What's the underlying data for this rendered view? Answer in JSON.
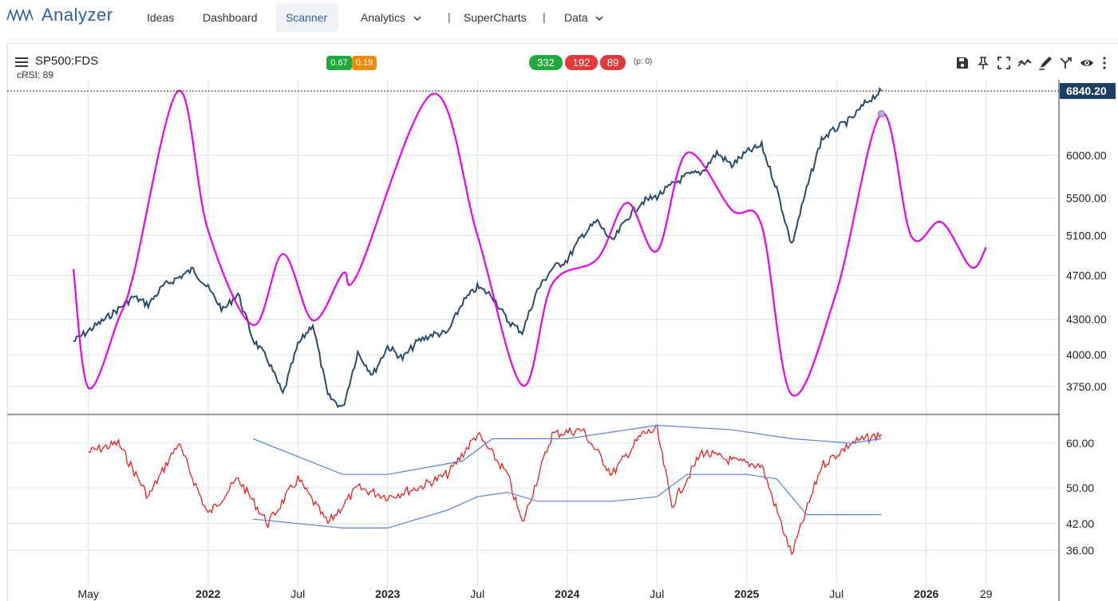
{
  "app": {
    "name": "Analyzer"
  },
  "nav": {
    "items": [
      {
        "label": "Ideas"
      },
      {
        "label": "Dashboard"
      },
      {
        "label": "Scanner"
      },
      {
        "label": "Analytics"
      },
      {
        "label": "SuperCharts"
      },
      {
        "label": "Data"
      }
    ],
    "separator": "|"
  },
  "chart": {
    "symbol": "SP500:FDS",
    "indicator_label": "cRSI: 89",
    "badges": {
      "a": "0.67",
      "b": "0.19"
    },
    "counts": {
      "green": "332",
      "red1": "192",
      "red2": "89"
    },
    "p_label": "(p: 0)",
    "last_price": "6840.20"
  },
  "chart_data": {
    "type": "line",
    "title": "SP500:FDS",
    "x_tick_labels": [
      "May",
      "2022",
      "Jul",
      "2023",
      "Jul",
      "2024",
      "Jul",
      "2025",
      "Jul",
      "2026",
      "29"
    ],
    "price_axis": {
      "ticks": [
        "6000.00",
        "5500.00",
        "5100.00",
        "4700.00",
        "4300.00",
        "4000.00",
        "3750.00"
      ],
      "last_value": 6840.2,
      "scale": "log"
    },
    "series": [
      {
        "name": "SP500:FDS",
        "color": "#2a4a6b",
        "points": [
          [
            "2021-04",
            4110
          ],
          [
            "2021-05",
            4200
          ],
          [
            "2021-06",
            4290
          ],
          [
            "2021-07",
            4390
          ],
          [
            "2021-08",
            4500
          ],
          [
            "2021-09",
            4430
          ],
          [
            "2021-10",
            4600
          ],
          [
            "2021-11",
            4680
          ],
          [
            "2021-12",
            4760
          ],
          [
            "2022-01",
            4580
          ],
          [
            "2022-02",
            4380
          ],
          [
            "2022-03",
            4530
          ],
          [
            "2022-04",
            4130
          ],
          [
            "2022-05",
            3960
          ],
          [
            "2022-06",
            3690
          ],
          [
            "2022-07",
            4080
          ],
          [
            "2022-08",
            4260
          ],
          [
            "2022-09",
            3680
          ],
          [
            "2022-10",
            3590
          ],
          [
            "2022-11",
            4020
          ],
          [
            "2022-12",
            3840
          ],
          [
            "2023-01",
            4070
          ],
          [
            "2023-02",
            3970
          ],
          [
            "2023-03",
            4110
          ],
          [
            "2023-04",
            4170
          ],
          [
            "2023-05",
            4180
          ],
          [
            "2023-06",
            4450
          ],
          [
            "2023-07",
            4590
          ],
          [
            "2023-08",
            4510
          ],
          [
            "2023-09",
            4290
          ],
          [
            "2023-10",
            4190
          ],
          [
            "2023-11",
            4560
          ],
          [
            "2023-12",
            4770
          ],
          [
            "2024-01",
            4850
          ],
          [
            "2024-02",
            5100
          ],
          [
            "2024-03",
            5250
          ],
          [
            "2024-04",
            5030
          ],
          [
            "2024-05",
            5280
          ],
          [
            "2024-06",
            5460
          ],
          [
            "2024-07",
            5520
          ],
          [
            "2024-08",
            5650
          ],
          [
            "2024-09",
            5760
          ],
          [
            "2024-10",
            5800
          ],
          [
            "2024-11",
            6030
          ],
          [
            "2024-12",
            5880
          ],
          [
            "2025-01",
            6040
          ],
          [
            "2025-02",
            6120
          ],
          [
            "2025-03",
            5610
          ],
          [
            "2025-04",
            5000
          ],
          [
            "2025-05",
            5600
          ],
          [
            "2025-06",
            6200
          ],
          [
            "2025-07",
            6340
          ],
          [
            "2025-08",
            6460
          ],
          [
            "2025-09",
            6690
          ],
          [
            "2025-10",
            6840
          ]
        ]
      },
      {
        "name": "cycle",
        "color": "#ee00ee",
        "points": [
          [
            "2021-04",
            4760
          ],
          [
            "2021-05",
            3740
          ],
          [
            "2021-07",
            4300
          ],
          [
            "2021-08",
            4700
          ],
          [
            "2021-11",
            6840
          ],
          [
            "2022-01",
            5150
          ],
          [
            "2022-04",
            4250
          ],
          [
            "2022-06",
            4910
          ],
          [
            "2022-08",
            4290
          ],
          [
            "2022-10",
            4720
          ],
          [
            "2022-11",
            4720
          ],
          [
            "2023-04",
            6800
          ],
          [
            "2023-07",
            5100
          ],
          [
            "2023-10",
            3760
          ],
          [
            "2023-12",
            4620
          ],
          [
            "2024-03",
            4860
          ],
          [
            "2024-05",
            5450
          ],
          [
            "2024-07",
            4940
          ],
          [
            "2024-09",
            6030
          ],
          [
            "2024-12",
            5370
          ],
          [
            "2025-02",
            5200
          ],
          [
            "2025-04",
            3690
          ],
          [
            "2025-07",
            4550
          ],
          [
            "2025-10",
            6530
          ],
          [
            "2025-12",
            5090
          ],
          [
            "2026-02",
            5240
          ],
          [
            "2026-04",
            4780
          ],
          [
            "2026-05",
            4980
          ]
        ]
      }
    ],
    "lower_pane": {
      "name": "cRSI",
      "ticks": [
        "60.00",
        "50.00",
        "42.00",
        "36.00"
      ],
      "series": [
        {
          "name": "cRSI",
          "color": "#e11",
          "points": [
            [
              "2021-05",
              58
            ],
            [
              "2021-07",
              60
            ],
            [
              "2021-09",
              48
            ],
            [
              "2021-11",
              60
            ],
            [
              "2022-01",
              44
            ],
            [
              "2022-03",
              52
            ],
            [
              "2022-05",
              42
            ],
            [
              "2022-07",
              52
            ],
            [
              "2022-09",
              42
            ],
            [
              "2022-11",
              50
            ],
            [
              "2023-01",
              48
            ],
            [
              "2023-03",
              50
            ],
            [
              "2023-05",
              53
            ],
            [
              "2023-07",
              62
            ],
            [
              "2023-09",
              53
            ],
            [
              "2023-10",
              42
            ],
            [
              "2023-12",
              62
            ],
            [
              "2024-02",
              63
            ],
            [
              "2024-04",
              53
            ],
            [
              "2024-06",
              62
            ],
            [
              "2024-07",
              63
            ],
            [
              "2024-08",
              46
            ],
            [
              "2024-10",
              58
            ],
            [
              "2024-12",
              56
            ],
            [
              "2025-02",
              55
            ],
            [
              "2025-04",
              35
            ],
            [
              "2025-06",
              55
            ],
            [
              "2025-08",
              60
            ],
            [
              "2025-10",
              62
            ]
          ]
        },
        {
          "name": "upper band",
          "color": "#5b7fd6",
          "points": [
            [
              "2022-04",
              61
            ],
            [
              "2022-07",
              57
            ],
            [
              "2022-10",
              53
            ],
            [
              "2023-01",
              53
            ],
            [
              "2023-06",
              56
            ],
            [
              "2023-08",
              61
            ],
            [
              "2024-01",
              61
            ],
            [
              "2024-07",
              64
            ],
            [
              "2024-12",
              63
            ],
            [
              "2025-04",
              61
            ],
            [
              "2025-08",
              60
            ],
            [
              "2025-10",
              61
            ]
          ]
        },
        {
          "name": "lower band",
          "color": "#5b7fd6",
          "points": [
            [
              "2022-04",
              43
            ],
            [
              "2022-07",
              42
            ],
            [
              "2022-10",
              41
            ],
            [
              "2023-01",
              41
            ],
            [
              "2023-03",
              43
            ],
            [
              "2023-05",
              45
            ],
            [
              "2023-07",
              48
            ],
            [
              "2023-09",
              49
            ],
            [
              "2023-11",
              47
            ],
            [
              "2024-04",
              47
            ],
            [
              "2024-07",
              48
            ],
            [
              "2024-09",
              53
            ],
            [
              "2025-01",
              53
            ],
            [
              "2025-03",
              52
            ],
            [
              "2025-05",
              44
            ],
            [
              "2025-10",
              44
            ]
          ]
        }
      ]
    }
  },
  "toolbar": {
    "icons": [
      "save-icon",
      "pin-icon",
      "fullscreen-icon",
      "compare-icon",
      "draw-icon",
      "branch-icon",
      "eye-icon",
      "more-icon"
    ]
  }
}
